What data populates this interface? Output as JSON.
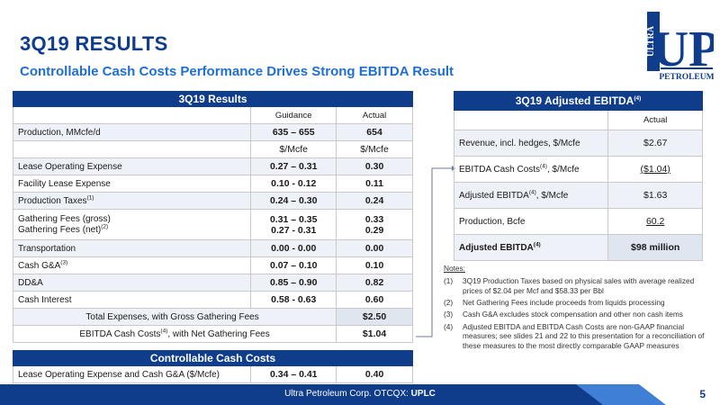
{
  "title": "3Q19 RESULTS",
  "subtitle": "Controllable Cash Costs Performance Drives Strong EBITDA Result",
  "logo": {
    "line1": "ULTRA",
    "line2": "UP",
    "line3": "PETROLEUM"
  },
  "results": {
    "header": "3Q19 Results",
    "col_guidance": "Guidance",
    "col_actual": "Actual",
    "production": {
      "label": "Production, MMcfe/d",
      "guidance": "635 – 655",
      "actual": "654"
    },
    "unit_guidance": "$/Mcfe",
    "unit_actual": "$/Mcfe",
    "rows": [
      {
        "label": "Lease Operating Expense",
        "guidance": "0.27 – 0.31",
        "actual": "0.30"
      },
      {
        "label": "Facility Lease Expense",
        "guidance": "0.10 - 0.12",
        "actual": "0.11"
      },
      {
        "label": "Production Taxes",
        "sup": "(1)",
        "guidance": "0.24 – 0.30",
        "actual": "0.24"
      }
    ],
    "gathering": {
      "label1": "Gathering Fees (gross)",
      "label2": "Gathering Fees (net)",
      "sup2": "(2)",
      "guidance1": "0.31 – 0.35",
      "guidance2": "0.27 - 0.31",
      "actual1": "0.33",
      "actual2": "0.29"
    },
    "rows2": [
      {
        "label": "Transportation",
        "guidance": "0.00 - 0.00",
        "actual": "0.00"
      },
      {
        "label": "Cash G&A",
        "sup": "(3)",
        "guidance": "0.07 – 0.10",
        "actual": "0.10"
      },
      {
        "label": "DD&A",
        "guidance": "0.85 – 0.90",
        "actual": "0.82"
      },
      {
        "label": "Cash Interest",
        "guidance": "0.58 - 0.63",
        "actual": "0.60"
      }
    ],
    "total_expenses": {
      "label": "Total Expenses, with Gross Gathering Fees",
      "actual": "$2.50"
    },
    "ebitda_cash": {
      "label_pre": "EBITDA Cash Costs",
      "sup": "(4)",
      "label_post": ", with Net Gathering Fees",
      "actual": "$1.04"
    }
  },
  "controllable": {
    "header": "Controllable Cash Costs",
    "label": "Lease Operating Expense and Cash G&A ($/Mcfe)",
    "guidance": "0.34 – 0.41",
    "actual": "0.40"
  },
  "ebitda": {
    "header": "3Q19 Adjusted EBITDA",
    "header_sup": "(4)",
    "col_actual": "Actual",
    "rows": [
      {
        "label": "Revenue, incl. hedges, $/Mcfe",
        "sup": "",
        "value": "$2.67",
        "underline": false
      },
      {
        "label": "EBITDA Cash Costs",
        "sup": "(4)",
        "label_post": ", $/Mcfe",
        "value": "($1.04)",
        "underline": true
      },
      {
        "label": "Adjusted EBITDA",
        "sup": "(4)",
        "label_post": ", $/Mcfe",
        "value": "$1.63",
        "underline": false
      },
      {
        "label": "Production, Bcfe",
        "sup": "",
        "value": "60.2",
        "underline": true
      }
    ],
    "total": {
      "label": "Adjusted EBITDA",
      "sup": "(4)",
      "value": "$98 million"
    }
  },
  "notes": {
    "title": "Notes:",
    "items": [
      {
        "num": "(1)",
        "text": "3Q19 Production Taxes based on physical sales with average realized prices of $2.04 per Mcf and $58.33 per Bbl"
      },
      {
        "num": "(2)",
        "text": "Net Gathering Fees include proceeds from liquids processing"
      },
      {
        "num": "(3)",
        "text": "Cash G&A excludes stock compensation and other non cash items"
      },
      {
        "num": "(4)",
        "text": "Adjusted EBITDA and EBITDA Cash Costs are non-GAAP financial measures; see slides 21 and 22 to this presentation for a reconciliation of these measures to the most directly comparable GAAP measures"
      }
    ]
  },
  "footer": {
    "company": "Ultra Petroleum Corp. OTCQX:",
    "ticker": "UPLC",
    "page": "5"
  },
  "colors": {
    "navy": "#0f3d8c",
    "accent": "#1f6fd1",
    "light_fill": "#dfe6f0"
  }
}
